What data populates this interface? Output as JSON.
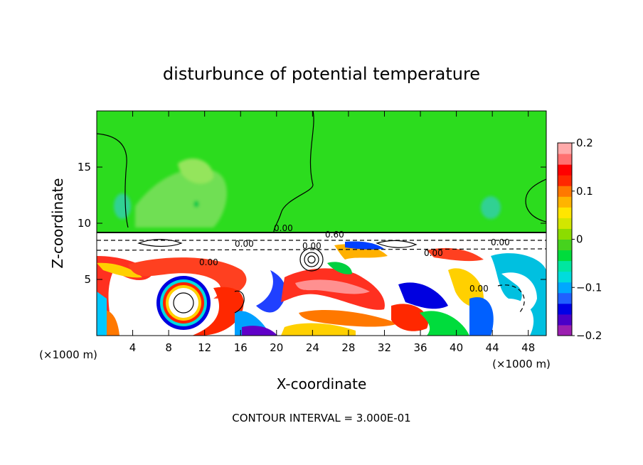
{
  "chart_data": {
    "type": "heatmap",
    "title": "disturbunce of potential temperature",
    "xlabel": "X-coordinate",
    "ylabel": "Z-coordinate",
    "x_unit": "(×1000 m)",
    "xlim": [
      0,
      50
    ],
    "ylim": [
      0,
      20
    ],
    "x_ticks": [
      4,
      8,
      12,
      16,
      20,
      24,
      28,
      32,
      36,
      40,
      44,
      48
    ],
    "y_ticks": [
      5,
      10,
      15
    ],
    "colorbar": {
      "range": [
        -0.2,
        0.2
      ],
      "tick_values": [
        0.2,
        0.1,
        0,
        -0.1,
        -0.2
      ],
      "tick_labels": [
        "0.2",
        "0.1",
        "0",
        "−0.1",
        "−0.2"
      ],
      "colors": [
        "#9b1fb0",
        "#4b00c8",
        "#0000e6",
        "#2060ff",
        "#00a8ff",
        "#00dcdc",
        "#00e6a0",
        "#00dc3c",
        "#46d21e",
        "#8cdc00",
        "#d2e600",
        "#ffe600",
        "#ffb400",
        "#ff7800",
        "#ff2800",
        "#ff0000",
        "#ff7070",
        "#ffaaaa"
      ]
    },
    "contour_labels": [
      "0.00",
      "0.60",
      "0.00",
      "0.00",
      "0.00",
      "0.00",
      "0.00",
      "0.00"
    ],
    "footer": "CONTOUR INTERVAL = 3.000E-01"
  }
}
